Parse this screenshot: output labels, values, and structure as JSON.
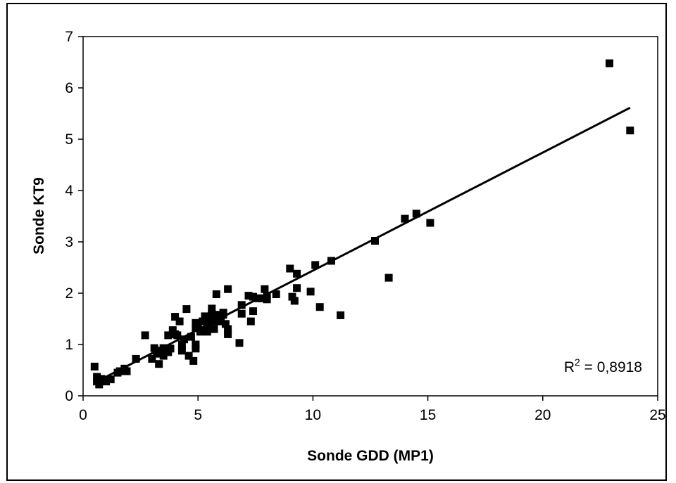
{
  "chart_data": {
    "type": "scatter",
    "xlabel": "Sonde GDD (MP1)",
    "ylabel": "Sonde KT9",
    "xlim": [
      0,
      25
    ],
    "ylim": [
      0,
      7
    ],
    "x_ticks": [
      "0",
      "5",
      "10",
      "15",
      "20",
      "25"
    ],
    "y_ticks": [
      "0",
      "1",
      "2",
      "3",
      "4",
      "5",
      "6",
      "7"
    ],
    "grid": false,
    "legend": "none",
    "series": [
      {
        "points": [
          [
            0.5,
            0.57
          ],
          [
            0.6,
            0.37
          ],
          [
            0.6,
            0.28
          ],
          [
            0.7,
            0.22
          ],
          [
            0.8,
            0.33
          ],
          [
            1.0,
            0.28
          ],
          [
            1.2,
            0.32
          ],
          [
            1.5,
            0.45
          ],
          [
            1.6,
            0.48
          ],
          [
            1.8,
            0.53
          ],
          [
            1.9,
            0.48
          ],
          [
            2.3,
            0.72
          ],
          [
            2.7,
            1.18
          ],
          [
            3.0,
            0.72
          ],
          [
            3.1,
            0.93
          ],
          [
            3.2,
            0.82
          ],
          [
            3.3,
            0.62
          ],
          [
            3.4,
            0.88
          ],
          [
            3.5,
            0.93
          ],
          [
            3.5,
            0.78
          ],
          [
            3.7,
            0.85
          ],
          [
            3.7,
            1.18
          ],
          [
            3.8,
            0.92
          ],
          [
            3.9,
            1.28
          ],
          [
            4.0,
            1.54
          ],
          [
            4.0,
            1.2
          ],
          [
            4.1,
            1.18
          ],
          [
            4.2,
            1.45
          ],
          [
            4.3,
            0.88
          ],
          [
            4.3,
            1.0
          ],
          [
            4.4,
            1.1
          ],
          [
            4.5,
            1.69
          ],
          [
            4.6,
            0.78
          ],
          [
            4.7,
            1.15
          ],
          [
            4.8,
            0.68
          ],
          [
            4.9,
            1.42
          ],
          [
            4.9,
            1.32
          ],
          [
            4.9,
            1.0
          ],
          [
            4.9,
            0.92
          ],
          [
            5.0,
            1.32
          ],
          [
            5.1,
            1.25
          ],
          [
            5.2,
            1.45
          ],
          [
            5.3,
            1.55
          ],
          [
            5.4,
            1.35
          ],
          [
            5.4,
            1.25
          ],
          [
            5.5,
            1.5
          ],
          [
            5.5,
            1.38
          ],
          [
            5.6,
            1.6
          ],
          [
            5.6,
            1.7
          ],
          [
            5.7,
            1.45
          ],
          [
            5.7,
            1.3
          ],
          [
            5.8,
            1.98
          ],
          [
            5.8,
            1.58
          ],
          [
            5.9,
            1.5
          ],
          [
            6.0,
            1.45
          ],
          [
            6.1,
            1.62
          ],
          [
            6.1,
            1.58
          ],
          [
            6.2,
            1.4
          ],
          [
            6.3,
            2.08
          ],
          [
            6.3,
            1.3
          ],
          [
            6.3,
            1.2
          ],
          [
            6.8,
            1.03
          ],
          [
            6.9,
            1.77
          ],
          [
            6.9,
            1.6
          ],
          [
            7.2,
            1.95
          ],
          [
            7.3,
            1.45
          ],
          [
            7.4,
            1.65
          ],
          [
            7.4,
            1.93
          ],
          [
            7.6,
            1.9
          ],
          [
            7.8,
            1.9
          ],
          [
            7.9,
            2.08
          ],
          [
            8.0,
            1.88
          ],
          [
            8.0,
            1.95
          ],
          [
            8.4,
            1.98
          ],
          [
            9.0,
            2.48
          ],
          [
            9.1,
            1.93
          ],
          [
            9.2,
            1.85
          ],
          [
            9.3,
            2.38
          ],
          [
            9.3,
            2.1
          ],
          [
            9.9,
            2.03
          ],
          [
            10.1,
            2.55
          ],
          [
            10.3,
            1.73
          ],
          [
            10.8,
            2.63
          ],
          [
            11.2,
            1.57
          ],
          [
            12.7,
            3.02
          ],
          [
            13.3,
            2.3
          ],
          [
            14.0,
            3.45
          ],
          [
            14.5,
            3.55
          ],
          [
            15.1,
            3.37
          ],
          [
            22.9,
            6.48
          ],
          [
            23.8,
            5.17
          ]
        ]
      }
    ],
    "trendline": {
      "type": "linear",
      "slope": 0.23,
      "intercept": 0.14,
      "x_start": 0.5,
      "x_end": 23.8
    },
    "r2_text": {
      "prefix": "R",
      "superscript": "2",
      "value": " = 0,8918"
    }
  }
}
